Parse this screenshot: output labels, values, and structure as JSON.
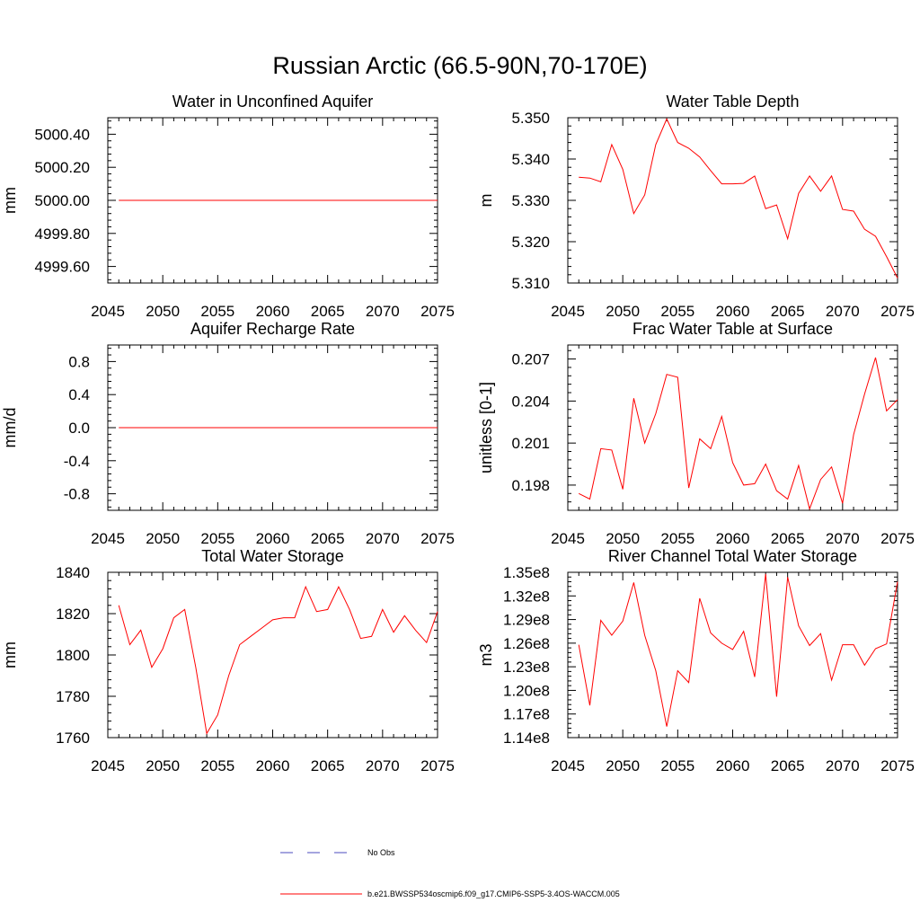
{
  "figure_title": "Russian Arctic (66.5-90N,70-170E)",
  "legend": [
    {
      "label": "No Obs",
      "color": "#4b4bbf",
      "dash": "dashed"
    },
    {
      "label": "b.e21.BWSSP534oscmip6.f09_g17.CMIP6-SSP5-3.4OS-WACCM.005",
      "color": "#ff0000",
      "dash": "solid"
    }
  ],
  "chart_data": [
    {
      "type": "line",
      "title": "Water in Unconfined Aquifer",
      "ylabel": "mm",
      "xlim": [
        2045,
        2075
      ],
      "ylim": [
        4999.5,
        5000.5
      ],
      "x_ticks": [
        2045,
        2050,
        2055,
        2060,
        2065,
        2070,
        2075
      ],
      "x_tick_labels": [
        "2045",
        "2050",
        "2055",
        "2060",
        "2065",
        "2070",
        "2075"
      ],
      "y_ticks": [
        4999.6,
        4999.8,
        5000.0,
        5000.2,
        5000.4
      ],
      "y_tick_labels": [
        "4999.60",
        "4999.80",
        "5000.00",
        "5000.20",
        "5000.40"
      ],
      "x": [
        2046,
        2047,
        2048,
        2049,
        2050,
        2051,
        2052,
        2053,
        2054,
        2055,
        2056,
        2057,
        2058,
        2059,
        2060,
        2061,
        2062,
        2063,
        2064,
        2065,
        2066,
        2067,
        2068,
        2069,
        2070,
        2071,
        2072,
        2073,
        2074,
        2075
      ],
      "y": [
        5000,
        5000,
        5000,
        5000,
        5000,
        5000,
        5000,
        5000,
        5000,
        5000,
        5000,
        5000,
        5000,
        5000,
        5000,
        5000,
        5000,
        5000,
        5000,
        5000,
        5000,
        5000,
        5000,
        5000,
        5000,
        5000,
        5000,
        5000,
        5000,
        5000
      ]
    },
    {
      "type": "line",
      "title": "Water Table Depth",
      "ylabel": "m",
      "xlim": [
        2045,
        2075
      ],
      "ylim": [
        5.31,
        5.35
      ],
      "x_ticks": [
        2045,
        2050,
        2055,
        2060,
        2065,
        2070,
        2075
      ],
      "x_tick_labels": [
        "2045",
        "2050",
        "2055",
        "2060",
        "2065",
        "2070",
        "2075"
      ],
      "y_ticks": [
        5.31,
        5.32,
        5.33,
        5.34,
        5.35
      ],
      "y_tick_labels": [
        "5.310",
        "5.320",
        "5.330",
        "5.340",
        "5.350"
      ],
      "x": [
        2046,
        2047,
        2048,
        2049,
        2050,
        2051,
        2052,
        2053,
        2054,
        2055,
        2056,
        2057,
        2058,
        2059,
        2060,
        2061,
        2062,
        2063,
        2064,
        2065,
        2066,
        2067,
        2068,
        2069,
        2070,
        2071,
        2072,
        2073,
        2074,
        2075
      ],
      "y": [
        5.3356,
        5.3354,
        5.3345,
        5.3435,
        5.3375,
        5.3268,
        5.3313,
        5.3435,
        5.3497,
        5.344,
        5.3426,
        5.3405,
        5.3372,
        5.334,
        5.334,
        5.3341,
        5.3359,
        5.328,
        5.3289,
        5.3207,
        5.3317,
        5.3359,
        5.3322,
        5.3359,
        5.3278,
        5.3274,
        5.323,
        5.3213,
        5.3164,
        5.3112
      ]
    },
    {
      "type": "line",
      "title": "Aquifer Recharge Rate",
      "ylabel": "mm/d",
      "xlim": [
        2045,
        2075
      ],
      "ylim": [
        -1.0,
        1.0
      ],
      "x_ticks": [
        2045,
        2050,
        2055,
        2060,
        2065,
        2070,
        2075
      ],
      "x_tick_labels": [
        "2045",
        "2050",
        "2055",
        "2060",
        "2065",
        "2070",
        "2075"
      ],
      "y_ticks": [
        -0.8,
        -0.4,
        0.0,
        0.4,
        0.8
      ],
      "y_tick_labels": [
        "-0.8",
        "-0.4",
        "0.0",
        "0.4",
        "0.8"
      ],
      "x": [
        2046,
        2047,
        2048,
        2049,
        2050,
        2051,
        2052,
        2053,
        2054,
        2055,
        2056,
        2057,
        2058,
        2059,
        2060,
        2061,
        2062,
        2063,
        2064,
        2065,
        2066,
        2067,
        2068,
        2069,
        2070,
        2071,
        2072,
        2073,
        2074,
        2075
      ],
      "y": [
        0,
        0,
        0,
        0,
        0,
        0,
        0,
        0,
        0,
        0,
        0,
        0,
        0,
        0,
        0,
        0,
        0,
        0,
        0,
        0,
        0,
        0,
        0,
        0,
        0,
        0,
        0,
        0,
        0,
        0
      ]
    },
    {
      "type": "line",
      "title": "Frac Water Table at Surface",
      "ylabel": "unitless [0-1]",
      "xlim": [
        2045,
        2075
      ],
      "ylim": [
        0.1962,
        0.208
      ],
      "x_ticks": [
        2045,
        2050,
        2055,
        2060,
        2065,
        2070,
        2075
      ],
      "x_tick_labels": [
        "2045",
        "2050",
        "2055",
        "2060",
        "2065",
        "2070",
        "2075"
      ],
      "y_ticks": [
        0.198,
        0.201,
        0.204,
        0.207
      ],
      "y_tick_labels": [
        "0.198",
        "0.201",
        "0.204",
        "0.207"
      ],
      "x": [
        2046,
        2047,
        2048,
        2049,
        2050,
        2051,
        2052,
        2053,
        2054,
        2055,
        2056,
        2057,
        2058,
        2059,
        2060,
        2061,
        2062,
        2063,
        2064,
        2065,
        2066,
        2067,
        2068,
        2069,
        2070,
        2071,
        2072,
        2073,
        2074,
        2075
      ],
      "y": [
        0.1974,
        0.197,
        0.2006,
        0.2005,
        0.1977,
        0.2042,
        0.201,
        0.2031,
        0.2059,
        0.2057,
        0.1978,
        0.2013,
        0.2006,
        0.2029,
        0.1996,
        0.198,
        0.1981,
        0.1995,
        0.1976,
        0.197,
        0.1994,
        0.1963,
        0.1984,
        0.1993,
        0.1967,
        0.2016,
        0.2045,
        0.2071,
        0.2033,
        0.2041
      ]
    },
    {
      "type": "line",
      "title": "Total Water Storage",
      "ylabel": "mm",
      "xlim": [
        2045,
        2075
      ],
      "ylim": [
        1760,
        1840
      ],
      "x_ticks": [
        2045,
        2050,
        2055,
        2060,
        2065,
        2070,
        2075
      ],
      "x_tick_labels": [
        "2045",
        "2050",
        "2055",
        "2060",
        "2065",
        "2070",
        "2075"
      ],
      "y_ticks": [
        1760,
        1780,
        1800,
        1820,
        1840
      ],
      "y_tick_labels": [
        "1760",
        "1780",
        "1800",
        "1820",
        "1840"
      ],
      "x": [
        2046,
        2047,
        2048,
        2049,
        2050,
        2051,
        2052,
        2053,
        2054,
        2055,
        2056,
        2057,
        2058,
        2059,
        2060,
        2061,
        2062,
        2063,
        2064,
        2065,
        2066,
        2067,
        2068,
        2069,
        2070,
        2071,
        2072,
        2073,
        2074,
        2075
      ],
      "y": [
        1824,
        1805,
        1812,
        1794,
        1803,
        1818,
        1822,
        1794,
        1762,
        1771,
        1790,
        1805,
        1809,
        1813,
        1817,
        1818,
        1818,
        1833,
        1821,
        1822,
        1833,
        1822,
        1808,
        1809,
        1822,
        1811,
        1819,
        1812,
        1806,
        1821
      ]
    },
    {
      "type": "line",
      "title": "River Channel Total Water Storage",
      "ylabel": "m3",
      "xlim": [
        2045,
        2075
      ],
      "ylim": [
        114000000,
        135000000
      ],
      "x_ticks": [
        2045,
        2050,
        2055,
        2060,
        2065,
        2070,
        2075
      ],
      "x_tick_labels": [
        "2045",
        "2050",
        "2055",
        "2060",
        "2065",
        "2070",
        "2075"
      ],
      "y_ticks": [
        114000000,
        117000000,
        120000000,
        123000000,
        126000000,
        129000000,
        132000000,
        135000000
      ],
      "y_tick_labels": [
        "1.14e8",
        "1.17e8",
        "1.20e8",
        "1.23e8",
        "1.26e8",
        "1.29e8",
        "1.32e8",
        "1.35e8"
      ],
      "x": [
        2046,
        2047,
        2048,
        2049,
        2050,
        2051,
        2052,
        2053,
        2054,
        2055,
        2056,
        2057,
        2058,
        2059,
        2060,
        2061,
        2062,
        2063,
        2064,
        2065,
        2066,
        2067,
        2068,
        2069,
        2070,
        2071,
        2072,
        2073,
        2074,
        2075
      ],
      "y": [
        125800000,
        118100000,
        128900000,
        127000000,
        128800000,
        133700000,
        127000000,
        122500000,
        115400000,
        122500000,
        121000000,
        131700000,
        127300000,
        126000000,
        125200000,
        127500000,
        121700000,
        134800000,
        119200000,
        134400000,
        128200000,
        125700000,
        127200000,
        121300000,
        125800000,
        125800000,
        123200000,
        125300000,
        125900000,
        133800000
      ]
    }
  ]
}
